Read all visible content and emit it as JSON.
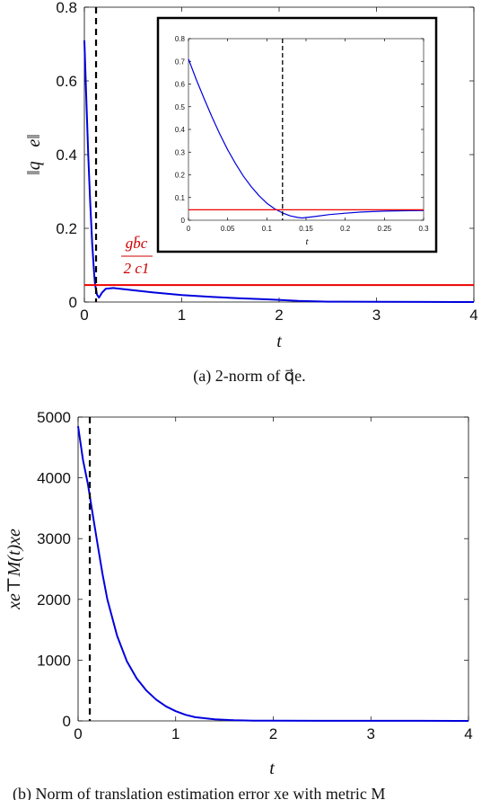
{
  "chart_data": [
    {
      "type": "line",
      "panel": "a",
      "xlabel": "t",
      "ylabel": "‖q⃗e‖",
      "xlim": [
        0,
        4
      ],
      "ylim": [
        0,
        0.8
      ],
      "xticks": [
        "0",
        "1",
        "2",
        "3",
        "4"
      ],
      "yticks": [
        "0",
        "0.2",
        "0.4",
        "0.6",
        "0.8"
      ],
      "x_tick_values": [
        0,
        1,
        2,
        3,
        4
      ],
      "y_tick_values": [
        0,
        0.2,
        0.4,
        0.6,
        0.8
      ],
      "caption": "(a) 2-norm of q⃗e.",
      "threshold_label_num": "gb̄c",
      "threshold_label_den": "2 c1",
      "series": [
        {
          "color": "#0000dd",
          "x": [
            0,
            0.02,
            0.04,
            0.06,
            0.08,
            0.1,
            0.11,
            0.13,
            0.15,
            0.18,
            0.22,
            0.3,
            0.5,
            0.7,
            1.0,
            1.3,
            1.6,
            1.9,
            2.2,
            2.5,
            3.0,
            3.5,
            4.0
          ],
          "y": [
            0.71,
            0.55,
            0.4,
            0.27,
            0.16,
            0.08,
            0.048,
            0.02,
            0.012,
            0.025,
            0.036,
            0.038,
            0.032,
            0.026,
            0.019,
            0.014,
            0.01,
            0.007,
            0.003,
            0.001,
            0.0005,
            0.0002,
            0.0001
          ]
        },
        {
          "color": "#ee0000",
          "x": [
            0,
            4
          ],
          "y": [
            0.046,
            0.046
          ]
        }
      ],
      "vline": {
        "x": 0.12,
        "style": "dashed",
        "color": "#000000"
      },
      "inset": {
        "xlabel": "t",
        "xlim": [
          0,
          0.3
        ],
        "ylim": [
          0,
          0.8
        ],
        "xticks": [
          "0",
          "0.05",
          "0.1",
          "0.15",
          "0.2",
          "0.25",
          "0.3"
        ],
        "yticks": [
          "0",
          "0.1",
          "0.2",
          "0.3",
          "0.4",
          "0.5",
          "0.6",
          "0.7",
          "0.8"
        ],
        "x_tick_values": [
          0,
          0.05,
          0.1,
          0.15,
          0.2,
          0.25,
          0.3
        ],
        "y_tick_values": [
          0,
          0.1,
          0.2,
          0.3,
          0.4,
          0.5,
          0.6,
          0.7,
          0.8
        ],
        "series": [
          {
            "color": "#0000dd",
            "x": [
              0,
              0.01,
              0.02,
              0.03,
              0.04,
              0.05,
              0.06,
              0.07,
              0.08,
              0.09,
              0.1,
              0.11,
              0.12,
              0.13,
              0.14,
              0.145,
              0.16,
              0.18,
              0.2,
              0.22,
              0.25,
              0.28,
              0.3
            ],
            "y": [
              0.71,
              0.62,
              0.535,
              0.455,
              0.38,
              0.31,
              0.25,
              0.195,
              0.148,
              0.108,
              0.075,
              0.05,
              0.032,
              0.019,
              0.012,
              0.01,
              0.016,
              0.025,
              0.031,
              0.036,
              0.04,
              0.042,
              0.043
            ]
          },
          {
            "color": "#ee0000",
            "x": [
              0,
              0.3
            ],
            "y": [
              0.046,
              0.046
            ]
          }
        ],
        "vline": {
          "x": 0.12,
          "style": "dashed",
          "color": "#000000"
        }
      }
    },
    {
      "type": "line",
      "panel": "b",
      "xlabel": "t",
      "ylabel": "xe⊤M(t)xe",
      "xlim": [
        0,
        4
      ],
      "ylim": [
        0,
        5000
      ],
      "xticks": [
        "0",
        "1",
        "2",
        "3",
        "4"
      ],
      "yticks": [
        "0",
        "1000",
        "2000",
        "3000",
        "4000",
        "5000"
      ],
      "x_tick_values": [
        0,
        1,
        2,
        3,
        4
      ],
      "y_tick_values": [
        0,
        1000,
        2000,
        3000,
        4000,
        5000
      ],
      "caption": "(b) Norm of translation estimation error xe with metric M",
      "series": [
        {
          "color": "#0000dd",
          "x": [
            0,
            0.05,
            0.1,
            0.15,
            0.2,
            0.25,
            0.3,
            0.4,
            0.5,
            0.6,
            0.7,
            0.8,
            0.9,
            1.0,
            1.1,
            1.2,
            1.4,
            1.6,
            1.8,
            2.0,
            2.5,
            3.0,
            3.5,
            4.0
          ],
          "y": [
            4850,
            4300,
            3900,
            3400,
            2900,
            2420,
            2000,
            1400,
            980,
            700,
            500,
            350,
            240,
            160,
            100,
            60,
            25,
            10,
            5,
            3,
            2,
            1,
            1,
            0
          ]
        }
      ],
      "vline": {
        "x": 0.12,
        "style": "dashed",
        "color": "#000000"
      }
    }
  ]
}
